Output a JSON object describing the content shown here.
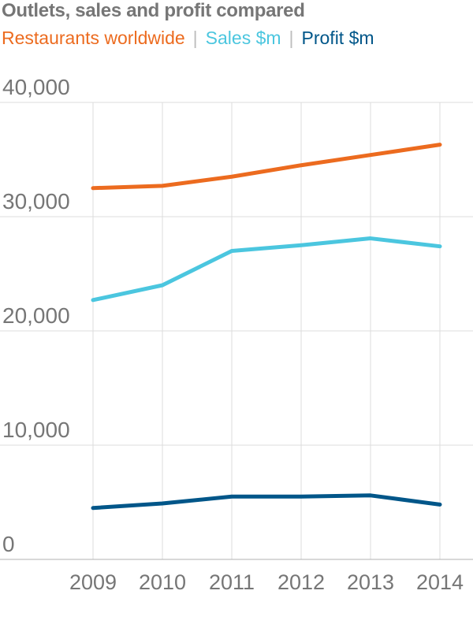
{
  "title": "Outlets, sales and profit compared",
  "chart_data": {
    "type": "line",
    "title": "Outlets, sales and profit compared",
    "xlabel": "",
    "ylabel": "",
    "x": [
      "2009",
      "2010",
      "2011",
      "2012",
      "2013",
      "2014"
    ],
    "ylim": [
      0,
      40000
    ],
    "yticks": [
      "40,000",
      "30,000",
      "20,000",
      "10,000",
      "0"
    ],
    "ytick_values": [
      40000,
      30000,
      20000,
      10000,
      0
    ],
    "grid": true,
    "legend_placement": "top",
    "series": [
      {
        "name": "Restaurants worldwide",
        "color": "#ec6b1f",
        "values": [
          32500,
          32700,
          33500,
          34500,
          35400,
          36300
        ]
      },
      {
        "name": "Sales $m",
        "color": "#4bc6df",
        "values": [
          22700,
          24000,
          27000,
          27500,
          28100,
          27400
        ]
      },
      {
        "name": "Profit $m",
        "color": "#005689",
        "values": [
          4500,
          4900,
          5500,
          5500,
          5600,
          4800
        ]
      }
    ]
  }
}
